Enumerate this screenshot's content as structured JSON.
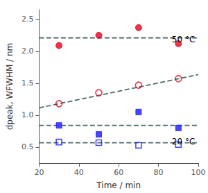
{
  "chart_data": {
    "type": "scatter",
    "title": "",
    "xlabel": "Time / min",
    "ylabel": "dpeak, WFWHM / nm",
    "xlim": [
      20,
      100
    ],
    "ylim": [
      0.25,
      2.65
    ],
    "xticks": [
      20,
      40,
      60,
      80,
      100
    ],
    "yticks": [
      0.5,
      {
        "value": 1.0,
        "label": "1.0"
      },
      1.5,
      {
        "value": 2.0,
        "label": "2.0"
      },
      2.5
    ],
    "grid": false,
    "series": [
      {
        "type": "line",
        "line_style": "dashed",
        "color": "#4d6b6b",
        "x": [
          20,
          100
        ],
        "values": [
          2.21,
          2.21
        ]
      },
      {
        "type": "line",
        "line_style": "dashed",
        "color": "#4d6b6b",
        "x": [
          20,
          100
        ],
        "values": [
          1.115,
          1.635
        ]
      },
      {
        "type": "line",
        "line_style": "dashed",
        "color": "#4d6b6b",
        "x": [
          20,
          100
        ],
        "values": [
          0.84,
          0.84
        ]
      },
      {
        "type": "line",
        "line_style": "dashed",
        "color": "#4d6b6b",
        "x": [
          20,
          100
        ],
        "values": [
          0.57,
          0.57
        ]
      },
      {
        "type": "scatter",
        "marker": "circle",
        "color": "#e8001c",
        "x": [
          30,
          50,
          70,
          90
        ],
        "values": [
          2.09,
          2.25,
          2.37,
          2.12
        ]
      },
      {
        "type": "scatter",
        "marker": "open_circle",
        "color": "#e8001c",
        "x": [
          30,
          50,
          70,
          90
        ],
        "values": [
          1.18,
          1.35,
          1.47,
          1.57
        ]
      },
      {
        "type": "scatter",
        "marker": "square",
        "color": "#1a1aff",
        "x": [
          30,
          50,
          70,
          90
        ],
        "values": [
          0.84,
          0.7,
          1.05,
          0.8
        ]
      },
      {
        "type": "scatter",
        "marker": "open_square",
        "color": "#1a1aff",
        "x": [
          30,
          50,
          70,
          90
        ],
        "values": [
          0.58,
          0.57,
          0.53,
          0.54
        ]
      }
    ],
    "annotations": [
      {
        "text": "50 °C"
      },
      {
        "text": "20 °C"
      }
    ]
  }
}
